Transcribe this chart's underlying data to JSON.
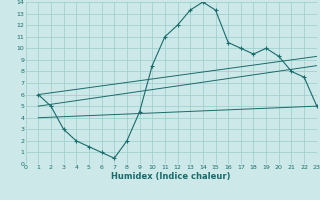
{
  "xlabel": "Humidex (Indice chaleur)",
  "bg_color": "#cce8e8",
  "grid_color": "#99cccc",
  "line_color": "#1a6b6b",
  "xlim": [
    0,
    23
  ],
  "ylim": [
    0,
    14
  ],
  "xticks": [
    0,
    1,
    2,
    3,
    4,
    5,
    6,
    7,
    8,
    9,
    10,
    11,
    12,
    13,
    14,
    15,
    16,
    17,
    18,
    19,
    20,
    21,
    22,
    23
  ],
  "yticks": [
    0,
    1,
    2,
    3,
    4,
    5,
    6,
    7,
    8,
    9,
    10,
    11,
    12,
    13,
    14
  ],
  "line1_x": [
    1,
    2,
    3,
    4,
    5,
    6,
    7,
    8,
    9,
    10,
    11,
    12,
    13,
    14,
    15,
    16,
    17,
    18,
    19,
    20,
    21,
    22,
    23
  ],
  "line1_y": [
    6,
    5,
    3,
    2,
    1.5,
    1,
    0.5,
    2,
    4.5,
    8.5,
    11,
    12,
    13.3,
    14,
    13.3,
    10.5,
    10,
    9.5,
    10,
    9.3,
    8,
    7.5,
    5
  ],
  "line2_x": [
    1,
    23
  ],
  "line2_y": [
    6,
    9.3
  ],
  "line3_x": [
    1,
    23
  ],
  "line3_y": [
    5,
    8.5
  ],
  "line4_x": [
    1,
    23
  ],
  "line4_y": [
    4,
    5
  ]
}
